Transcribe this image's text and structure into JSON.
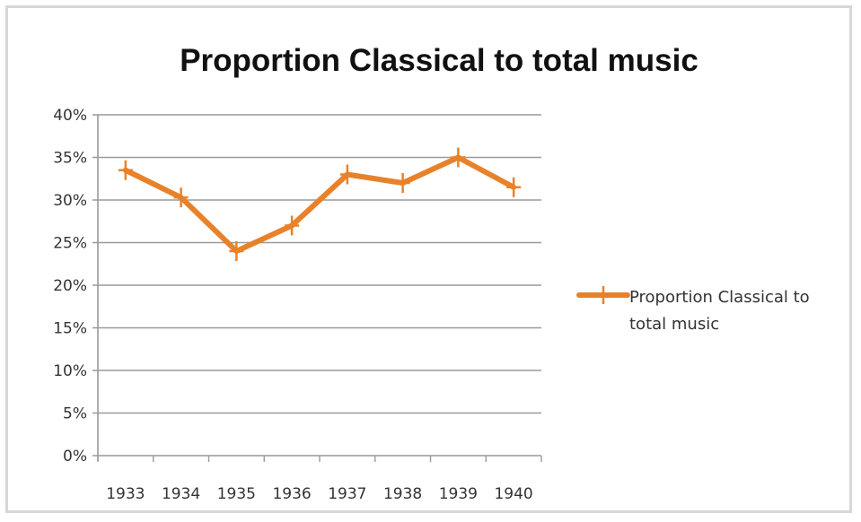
{
  "chart_data": {
    "type": "line",
    "title": "Proportion Classical to total music",
    "categories": [
      "1933",
      "1934",
      "1935",
      "1936",
      "1937",
      "1938",
      "1939",
      "1940"
    ],
    "series": [
      {
        "name": "Proportion Classical to total music",
        "values": [
          33.5,
          30.3,
          24.0,
          27.0,
          33.0,
          32.0,
          35.0,
          31.5
        ],
        "color": "#e8822a",
        "marker": "plus"
      }
    ],
    "ylim": [
      0,
      40
    ],
    "yticks": [
      "0%",
      "5%",
      "10%",
      "15%",
      "20%",
      "25%",
      "30%",
      "35%",
      "40%"
    ],
    "grid": true,
    "legend": {
      "position": "right",
      "lines": [
        "Proportion Classical to",
        "total music"
      ]
    }
  }
}
